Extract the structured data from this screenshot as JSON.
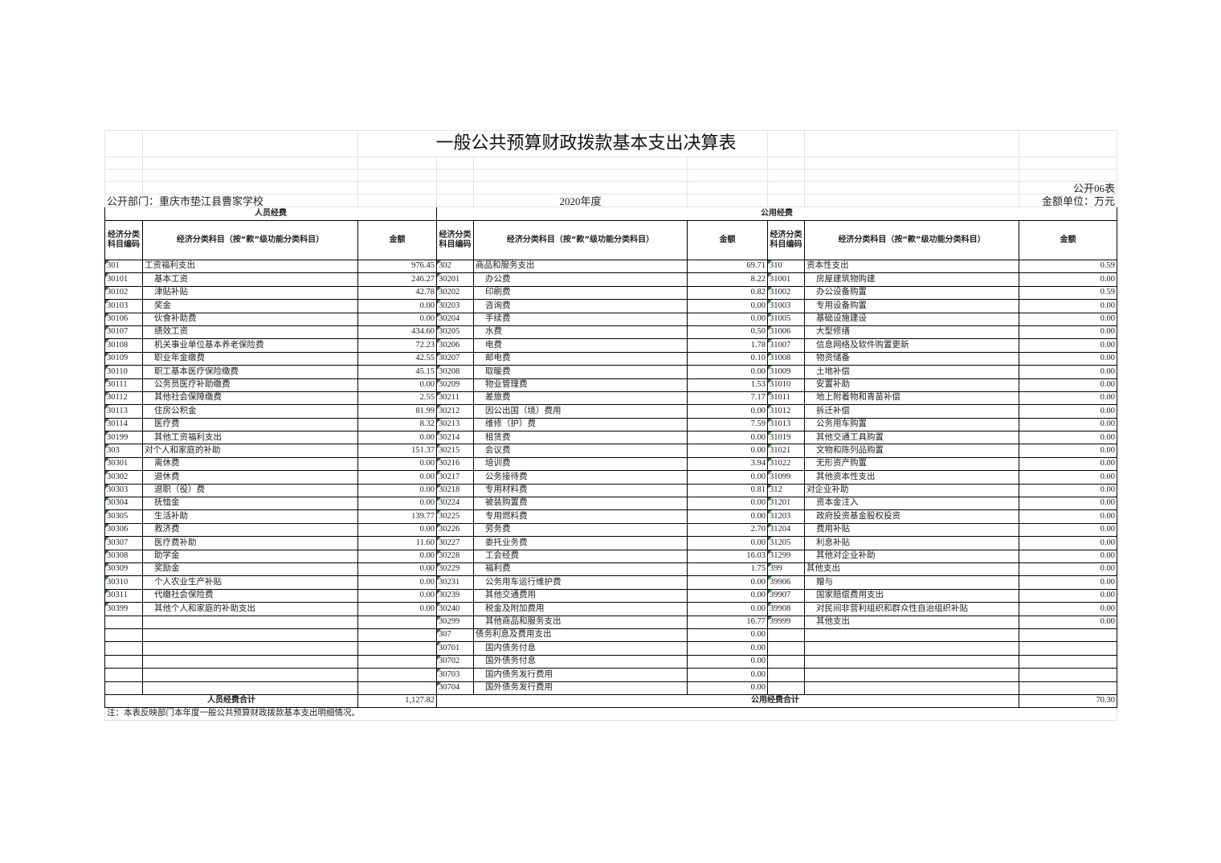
{
  "title": "一般公共预算财政拨款基本支出决算表",
  "table_no": "公开06表",
  "department": "公开部门：重庆市垫江县曹家学校",
  "year": "2020年度",
  "unit": "金额单位：万元",
  "group_personnel": "人员经费",
  "group_public": "公用经费",
  "col_code": "经济分类科目编码",
  "col_name": "经济分类科目（按“款”级功能分类科目）",
  "col_amount": "金额",
  "personnel_total_label": "人员经费合计",
  "personnel_total": "1,127.82",
  "public_total_label": "公用经费合计",
  "public_total": "70.30",
  "note": "注：本表反映部门本年度一般公共预算财政拨款基本支出明细情况。",
  "rows_personnel": [
    [
      "301",
      "工资福利支出",
      "976.45"
    ],
    [
      "30101",
      "基本工资",
      "246.27"
    ],
    [
      "30102",
      "津贴补贴",
      "42.78"
    ],
    [
      "30103",
      "奖金",
      "0.00"
    ],
    [
      "30106",
      "伙食补助费",
      "0.00"
    ],
    [
      "30107",
      "绩效工资",
      "434.60"
    ],
    [
      "30108",
      "机关事业单位基本养老保险费",
      "72.23"
    ],
    [
      "30109",
      "职业年金缴费",
      "42.55"
    ],
    [
      "30110",
      "职工基本医疗保险缴费",
      "45.15"
    ],
    [
      "30111",
      "公务员医疗补助缴费",
      "0.00"
    ],
    [
      "30112",
      "其他社会保障缴费",
      "2.55"
    ],
    [
      "30113",
      "住房公积金",
      "81.99"
    ],
    [
      "30114",
      "医疗费",
      "8.32"
    ],
    [
      "30199",
      "其他工资福利支出",
      "0.00"
    ],
    [
      "303",
      "对个人和家庭的补助",
      "151.37"
    ],
    [
      "30301",
      "离休费",
      "0.00"
    ],
    [
      "30302",
      "退休费",
      "0.00"
    ],
    [
      "30303",
      "退职（役）费",
      "0.00"
    ],
    [
      "30304",
      "抚恤金",
      "0.00"
    ],
    [
      "30305",
      "生活补助",
      "139.77"
    ],
    [
      "30306",
      "救济费",
      "0.00"
    ],
    [
      "30307",
      "医疗费补助",
      "11.60"
    ],
    [
      "30308",
      "助学金",
      "0.00"
    ],
    [
      "30309",
      "奖励金",
      "0.00"
    ],
    [
      "30310",
      "个人农业生产补贴",
      "0.00"
    ],
    [
      "30311",
      "代缴社会保险费",
      "0.00"
    ],
    [
      "30399",
      "其他个人和家庭的补助支出",
      "0.00"
    ]
  ],
  "rows_public_goods": [
    [
      "302",
      "商品和服务支出",
      "69.71"
    ],
    [
      "30201",
      "办公费",
      "8.22"
    ],
    [
      "30202",
      "印刷费",
      "0.82"
    ],
    [
      "30203",
      "咨询费",
      "0.00"
    ],
    [
      "30204",
      "手续费",
      "0.00"
    ],
    [
      "30205",
      "水费",
      "0.50"
    ],
    [
      "30206",
      "电费",
      "1.78"
    ],
    [
      "30207",
      "邮电费",
      "0.10"
    ],
    [
      "30208",
      "取暖费",
      "0.00"
    ],
    [
      "30209",
      "物业管理费",
      "1.53"
    ],
    [
      "30211",
      "差旅费",
      "7.17"
    ],
    [
      "30212",
      "因公出国（境）费用",
      "0.00"
    ],
    [
      "30213",
      "维修（护）费",
      "7.59"
    ],
    [
      "30214",
      "租赁费",
      "0.00"
    ],
    [
      "30215",
      "会议费",
      "0.00"
    ],
    [
      "30216",
      "培训费",
      "3.94"
    ],
    [
      "30217",
      "公务接待费",
      "0.00"
    ],
    [
      "30218",
      "专用材料费",
      "0.81"
    ],
    [
      "30224",
      "被装购置费",
      "0.00"
    ],
    [
      "30225",
      "专用燃料费",
      "0.00"
    ],
    [
      "30226",
      "劳务费",
      "2.70"
    ],
    [
      "30227",
      "委托业务费",
      "0.00"
    ],
    [
      "30228",
      "工会经费",
      "16.03"
    ],
    [
      "30229",
      "福利费",
      "1.75"
    ],
    [
      "30231",
      "公务用车运行维护费",
      "0.00"
    ],
    [
      "30239",
      "其他交通费用",
      "0.00"
    ],
    [
      "30240",
      "税金及附加费用",
      "0.00"
    ],
    [
      "30299",
      "其他商品和服务支出",
      "16.77"
    ],
    [
      "307",
      "债务利息及费用支出",
      "0.00"
    ],
    [
      "30701",
      "国内债务付息",
      "0.00"
    ],
    [
      "30702",
      "国外债务付息",
      "0.00"
    ],
    [
      "30703",
      "国内债务发行费用",
      "0.00"
    ],
    [
      "30704",
      "国外债务发行费用",
      "0.00"
    ]
  ],
  "rows_public_capital": [
    [
      "310",
      "资本性支出",
      "0.59"
    ],
    [
      "31001",
      "房屋建筑物购建",
      "0.00"
    ],
    [
      "31002",
      "办公设备购置",
      "0.59"
    ],
    [
      "31003",
      "专用设备购置",
      "0.00"
    ],
    [
      "31005",
      "基础设施建设",
      "0.00"
    ],
    [
      "31006",
      "大型修缮",
      "0.00"
    ],
    [
      "31007",
      "信息网络及软件购置更新",
      "0.00"
    ],
    [
      "31008",
      "物资储备",
      "0.00"
    ],
    [
      "31009",
      "土地补偿",
      "0.00"
    ],
    [
      "31010",
      "安置补助",
      "0.00"
    ],
    [
      "31011",
      "地上附着物和青苗补偿",
      "0.00"
    ],
    [
      "31012",
      "拆迁补偿",
      "0.00"
    ],
    [
      "31013",
      "公务用车购置",
      "0.00"
    ],
    [
      "31019",
      "其他交通工具购置",
      "0.00"
    ],
    [
      "31021",
      "文物和陈列品购置",
      "0.00"
    ],
    [
      "31022",
      "无形资产购置",
      "0.00"
    ],
    [
      "31099",
      "其他资本性支出",
      "0.00"
    ],
    [
      "312",
      "对企业补助",
      "0.00"
    ],
    [
      "31201",
      "资本金注入",
      "0.00"
    ],
    [
      "31203",
      "政府投资基金股权投资",
      "0.00"
    ],
    [
      "31204",
      "费用补贴",
      "0.00"
    ],
    [
      "31205",
      "利息补贴",
      "0.00"
    ],
    [
      "31299",
      "其他对企业补助",
      "0.00"
    ],
    [
      "399",
      "其他支出",
      "0.00"
    ],
    [
      "39906",
      "赠与",
      "0.00"
    ],
    [
      "39907",
      "国家赔偿费用支出",
      "0.00"
    ],
    [
      "39908",
      "对民间非营利组织和群众性自治组织补贴",
      "0.00"
    ],
    [
      "39999",
      "其他支出",
      "0.00"
    ]
  ],
  "colors": {
    "border": "#000000",
    "gridline": "#e2e2e2",
    "text_marker": "#2f7a2f"
  }
}
